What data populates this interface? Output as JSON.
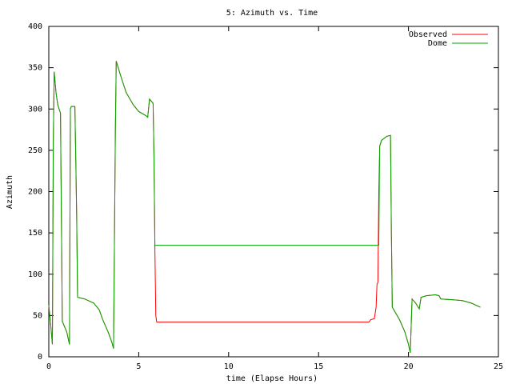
{
  "chart_data": {
    "type": "line",
    "title": "5: Azimuth vs. Time",
    "x_label": "time (Elapse Hours)",
    "y_label": "Azimuth",
    "x": [
      0,
      0.1,
      0.2,
      0.25,
      0.3,
      0.4,
      0.5,
      0.65,
      0.7,
      0.75,
      1.0,
      1.15,
      1.2,
      1.25,
      1.45,
      1.5,
      1.55,
      1.6,
      2.0,
      2.5,
      2.8,
      3.0,
      3.3,
      3.5,
      3.6,
      3.7,
      3.75,
      4.0,
      4.3,
      4.7,
      5.0,
      5.4,
      5.5,
      5.6,
      5.8,
      5.85,
      5.9,
      5.95,
      6.0,
      17.8,
      17.9,
      18.1,
      18.2,
      18.25,
      18.3,
      18.35,
      18.4,
      18.5,
      18.8,
      19.0,
      19.05,
      19.1,
      19.5,
      19.8,
      20.0,
      20.1,
      20.2,
      20.4,
      20.6,
      20.7,
      21.0,
      21.5,
      21.7,
      21.8,
      22.5,
      23.0,
      23.5,
      24.0
    ],
    "series": [
      {
        "name": "Observed",
        "color": "#ff0000",
        "values": [
          62,
          40,
          15,
          260,
          345,
          320,
          305,
          295,
          170,
          43,
          30,
          15,
          300,
          303,
          303,
          240,
          170,
          72,
          70,
          65,
          57,
          45,
          30,
          18,
          10,
          270,
          358,
          340,
          320,
          305,
          297,
          292,
          290,
          312,
          307,
          240,
          130,
          50,
          42,
          42,
          45,
          46,
          60,
          88,
          90,
          200,
          255,
          262,
          267,
          268,
          150,
          60,
          45,
          30,
          15,
          5,
          70,
          65,
          58,
          72,
          74,
          75,
          74,
          70,
          69,
          68,
          65,
          60
        ]
      },
      {
        "name": "Dome",
        "color": "#00aa00",
        "values": [
          62,
          40,
          15,
          260,
          345,
          320,
          305,
          295,
          170,
          43,
          30,
          15,
          300,
          303,
          303,
          240,
          170,
          72,
          70,
          65,
          57,
          45,
          30,
          18,
          10,
          270,
          358,
          340,
          320,
          305,
          297,
          292,
          290,
          312,
          307,
          240,
          135,
          135,
          135,
          135,
          135,
          135,
          135,
          135,
          135,
          135,
          255,
          262,
          267,
          268,
          150,
          60,
          45,
          30,
          15,
          5,
          70,
          65,
          58,
          72,
          74,
          75,
          74,
          70,
          69,
          68,
          65,
          60
        ]
      }
    ],
    "xlim": [
      0,
      25
    ],
    "xticks": [
      0,
      5,
      10,
      15,
      20,
      25
    ],
    "ylim": [
      0,
      400
    ],
    "yticks": [
      0,
      50,
      100,
      150,
      200,
      250,
      300,
      350,
      400
    ],
    "legend": "top-right",
    "grid": false
  }
}
